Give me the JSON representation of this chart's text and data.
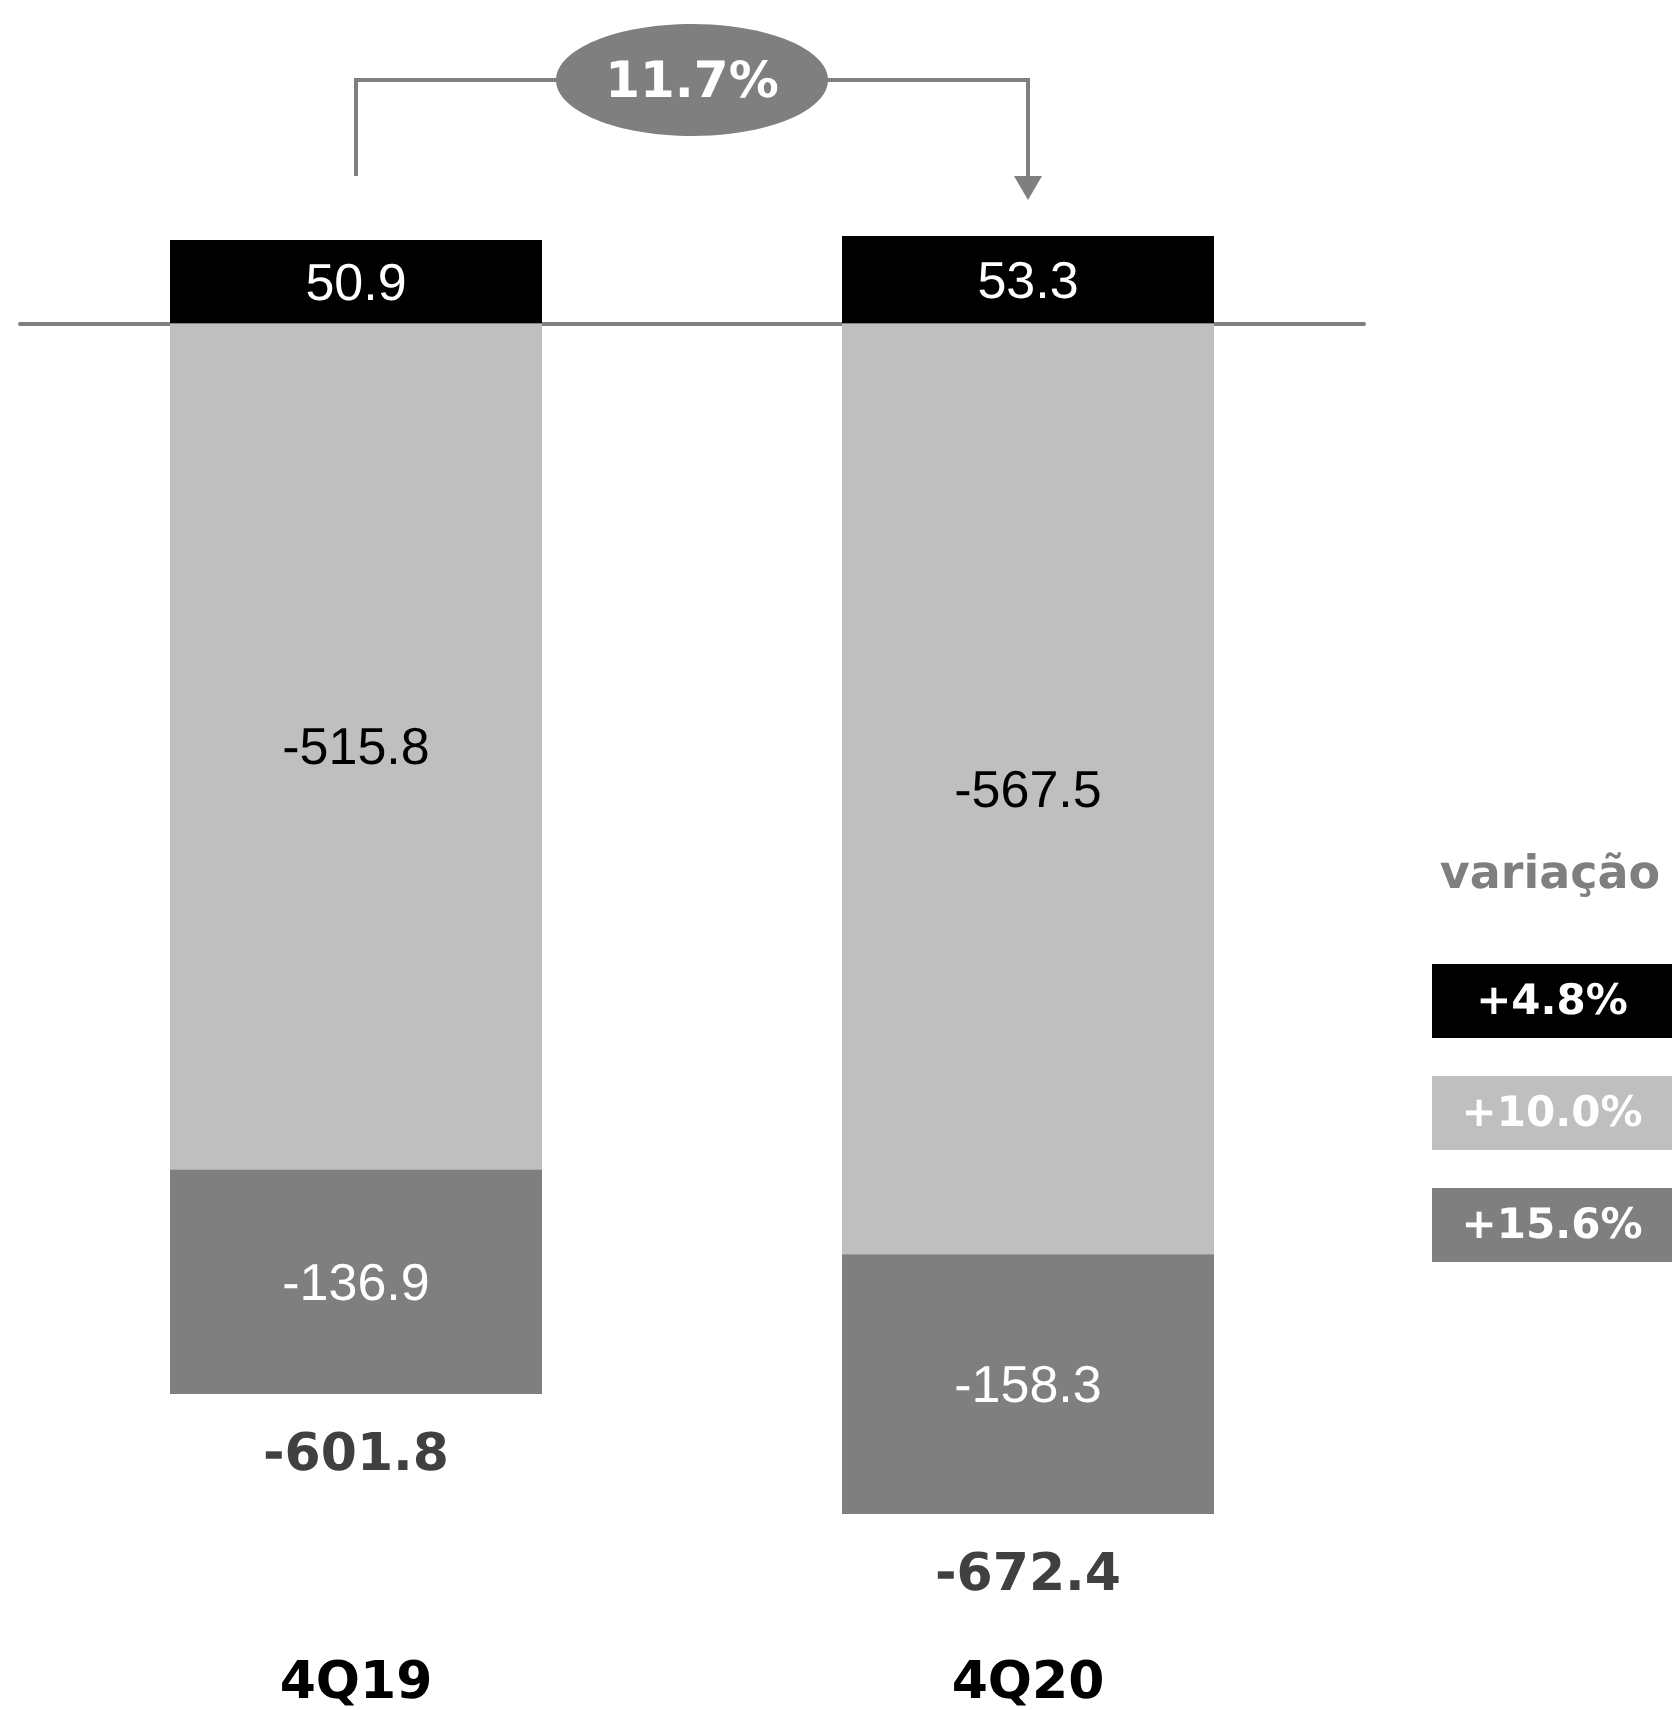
{
  "chart_data": {
    "type": "bar",
    "categories": [
      "4Q19",
      "4Q20"
    ],
    "stacked": true,
    "data_labels": true,
    "totals": [
      "-601.8",
      "-672.4"
    ],
    "series": [
      {
        "color": "#000000",
        "values": [
          50.9,
          53.3
        ]
      },
      {
        "color": "#bfbfbf",
        "values": [
          -515.8,
          -567.5
        ]
      },
      {
        "color": "#7f7f7f",
        "values": [
          -136.9,
          -158.3
        ]
      }
    ],
    "annotations": [
      "11.7%",
      "variação",
      "+4.8%",
      "+10.0%",
      "+15.6%"
    ]
  }
}
